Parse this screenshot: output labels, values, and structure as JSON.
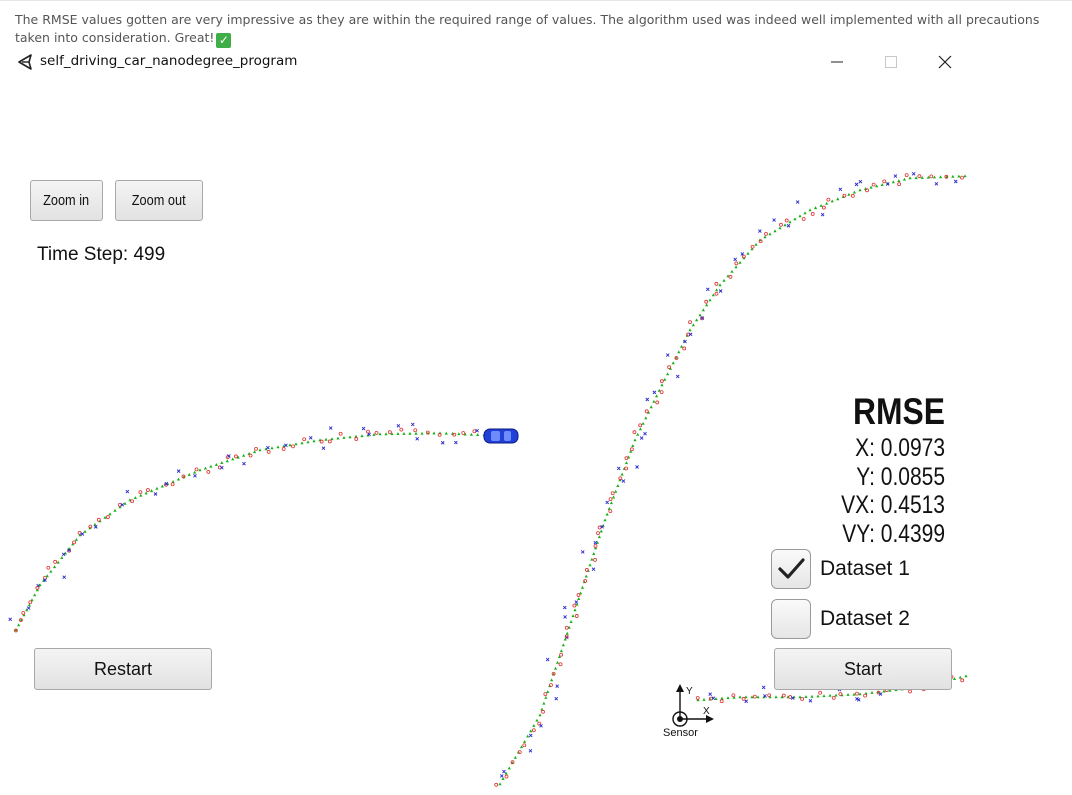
{
  "review": {
    "text": "The RMSE values gotten are very impressive as they are within the required range of values. The algorithm used was indeed well implemented with all precautions taken into consideration. Great!"
  },
  "window": {
    "title": "self_driving_car_nanodegree_program",
    "app_icon": "unity-icon"
  },
  "toolbar": {
    "zoom_in_label": "Zoom in",
    "zoom_out_label": "Zoom out"
  },
  "simulator": {
    "time_step_label": "Time Step: 499",
    "sensor_label": "Sensor",
    "axis_x_label": "X",
    "axis_y_label": "Y"
  },
  "rmse": {
    "title": "RMSE",
    "x": "X: 0.0973",
    "y": "Y: 0.0855",
    "vx": "VX: 0.4513",
    "vy": "VY: 0.4399"
  },
  "datasets": [
    {
      "label": "Dataset 1",
      "checked": true
    },
    {
      "label": "Dataset 2",
      "checked": false
    }
  ],
  "controls": {
    "restart_label": "Restart",
    "start_label": "Start"
  },
  "colors": {
    "lidar": "#e03030",
    "radar": "#2a2ad0",
    "estimate": "#18b018",
    "car": "#2040d8"
  }
}
